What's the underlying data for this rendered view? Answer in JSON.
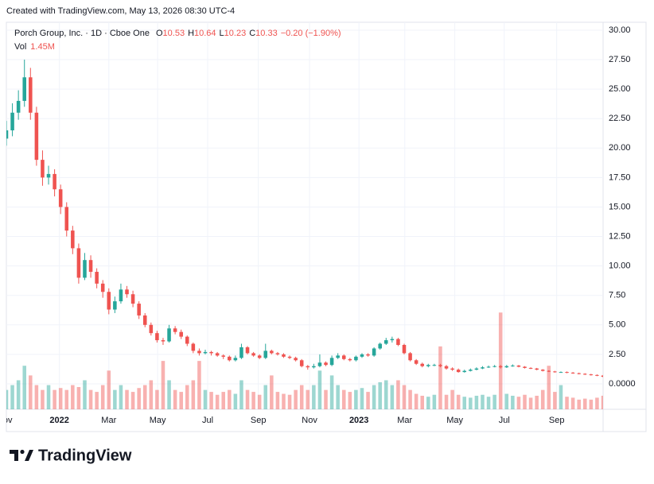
{
  "header": {
    "created": "Created with TradingView.com, May 13, 2026 08:30 UTC-4"
  },
  "footer": {
    "brand": "TradingView"
  },
  "chart_data": {
    "type": "candlestick",
    "legend": {
      "symbol": "Porch Group, Inc. · 1D · Cboe One",
      "ohlc": [
        {
          "label": "O",
          "value": "10.53"
        },
        {
          "label": "H",
          "value": "10.64"
        },
        {
          "label": "L",
          "value": "10.23"
        },
        {
          "label": "C",
          "value": "10.33"
        }
      ],
      "change": "−0.20 (−1.90%)",
      "volume_label": "Vol",
      "volume_value": "1.45M"
    },
    "up_color": "#26a69a",
    "down_color": "#ef5350",
    "grid": true,
    "xlim": [
      0,
      99
    ],
    "xticks": [
      {
        "value": -0.3,
        "label": "Nov"
      },
      {
        "value": 8.8,
        "label": "2022"
      },
      {
        "value": 17,
        "label": "Mar"
      },
      {
        "value": 25.1,
        "label": "May"
      },
      {
        "value": 33.4,
        "label": "Jul"
      },
      {
        "value": 41.8,
        "label": "Sep"
      },
      {
        "value": 50.3,
        "label": "Nov"
      },
      {
        "value": 58.5,
        "label": "2023"
      },
      {
        "value": 66.1,
        "label": "Mar"
      },
      {
        "value": 74.4,
        "label": "May"
      },
      {
        "value": 82.6,
        "label": "Jul"
      },
      {
        "value": 91.3,
        "label": "Sep"
      }
    ],
    "ylim": [
      -2.16,
      30.67
    ],
    "yticks": [
      {
        "value": 30,
        "label": "30.00"
      },
      {
        "value": 27.5,
        "label": "27.50"
      },
      {
        "value": 25,
        "label": "25.00"
      },
      {
        "value": 22.5,
        "label": "22.50"
      },
      {
        "value": 20,
        "label": "20.00"
      },
      {
        "value": 17.5,
        "label": "17.50"
      },
      {
        "value": 15,
        "label": "15.00"
      },
      {
        "value": 12.5,
        "label": "12.50"
      },
      {
        "value": 10,
        "label": "10.00"
      },
      {
        "value": 7.5,
        "label": "7.50"
      },
      {
        "value": 5,
        "label": "5.00"
      },
      {
        "value": 2.5,
        "label": "2.50"
      },
      {
        "value": 0,
        "label": "0.0000"
      }
    ],
    "y2lim": [
      0,
      40
    ],
    "open": [
      20.8,
      21.5,
      23,
      24,
      26,
      23,
      19,
      17.5,
      17.8,
      16.5,
      15,
      13,
      11.5,
      9,
      10.5,
      9.5,
      8.5,
      7.8,
      6.3,
      7,
      8,
      7.6,
      6.8,
      5.8,
      5,
      4.3,
      3.7,
      3.6,
      4.7,
      4.4,
      4,
      3.4,
      2.8,
      2.6,
      2.7,
      2.6,
      2.4,
      2.3,
      2,
      2.2,
      3.1,
      2.6,
      2.4,
      2.2,
      2.8,
      2.6,
      2.5,
      2.3,
      2.2,
      2.0,
      1.5,
      1.4,
      1.5,
      1.8,
      1.6,
      2.2,
      2.4,
      2.1,
      2.0,
      2.3,
      2.5,
      2.4,
      3.0,
      3.4,
      3.7,
      3.8,
      3.3,
      2.6,
      2.0,
      1.7,
      1.5,
      1.6,
      1.6,
      1.5,
      1.3,
      1.2,
      1.0,
      1.1,
      1.2,
      1.3,
      1.4,
      1.45,
      1.5,
      1.4,
      1.5,
      1.55,
      1.45,
      1.35,
      1.3,
      1.2,
      1.1,
      1.05,
      1.0,
      1.0,
      0.95,
      0.9,
      0.85,
      0.8,
      0.75,
      0.7
    ],
    "high": [
      22.3,
      23.8,
      24.9,
      27.5,
      26.8,
      23.5,
      19.8,
      18.5,
      18.2,
      16.9,
      15.4,
      13.4,
      11.9,
      11.1,
      10.9,
      9.8,
      8.8,
      8.1,
      7.4,
      8.5,
      8.3,
      7.9,
      7.0,
      6.0,
      5.2,
      4.5,
      3.9,
      5.0,
      4.9,
      4.6,
      4.1,
      3.5,
      3.0,
      2.9,
      2.8,
      2.7,
      2.5,
      2.4,
      2.4,
      3.4,
      3.2,
      2.7,
      2.5,
      3.4,
      2.9,
      2.7,
      2.6,
      2.4,
      2.3,
      2.1,
      1.6,
      1.7,
      2.5,
      1.9,
      2.4,
      2.6,
      2.5,
      2.2,
      2.4,
      2.6,
      2.6,
      3.1,
      3.5,
      3.9,
      4.0,
      3.9,
      3.4,
      2.7,
      2.1,
      1.8,
      1.7,
      1.7,
      1.7,
      1.6,
      1.4,
      1.3,
      1.2,
      1.3,
      1.4,
      1.5,
      1.55,
      1.6,
      1.6,
      1.6,
      1.65,
      1.6,
      1.5,
      1.4,
      1.35,
      1.25,
      1.15,
      1.1,
      1.05,
      1.05,
      1.0,
      0.95,
      0.9,
      0.85,
      0.8,
      0.75
    ],
    "low": [
      20.2,
      21.0,
      22.4,
      23.5,
      22.4,
      18.5,
      16.8,
      16.9,
      15.9,
      14.4,
      12.5,
      11.0,
      8.5,
      8.8,
      9.0,
      8.1,
      7.3,
      5.9,
      6.0,
      6.8,
      7.3,
      6.5,
      5.5,
      4.8,
      4.1,
      3.5,
      3.3,
      3.5,
      4.2,
      3.8,
      3.2,
      2.6,
      2.4,
      2.5,
      2.4,
      2.3,
      2.1,
      1.9,
      1.9,
      2.1,
      2.5,
      2.3,
      2.1,
      2.1,
      2.5,
      2.4,
      2.2,
      2.1,
      1.9,
      1.4,
      1.2,
      1.3,
      1.4,
      1.5,
      1.5,
      2.1,
      2.0,
      1.9,
      1.9,
      2.2,
      2.3,
      2.3,
      2.9,
      3.3,
      3.5,
      3.2,
      2.5,
      1.9,
      1.6,
      1.4,
      1.4,
      1.5,
      1.4,
      1.2,
      1.1,
      0.95,
      0.95,
      1.05,
      1.15,
      1.25,
      1.35,
      1.4,
      1.3,
      1.35,
      1.45,
      1.4,
      1.3,
      1.25,
      1.15,
      1.05,
      1.0,
      0.95,
      0.95,
      0.9,
      0.85,
      0.8,
      0.75,
      0.7,
      0.65,
      0.55
    ],
    "close": [
      21.5,
      23,
      24,
      26,
      23,
      19,
      17.5,
      17.8,
      16.5,
      15,
      13,
      11.5,
      9,
      10.5,
      9.5,
      8.5,
      7.8,
      6.3,
      7,
      8,
      7.6,
      6.8,
      5.8,
      5,
      4.3,
      3.7,
      3.6,
      4.7,
      4.4,
      4,
      3.4,
      2.8,
      2.6,
      2.7,
      2.6,
      2.4,
      2.3,
      2,
      2.2,
      3.1,
      2.6,
      2.4,
      2.2,
      2.8,
      2.6,
      2.5,
      2.3,
      2.2,
      2.0,
      1.5,
      1.4,
      1.5,
      1.8,
      1.6,
      2.2,
      2.4,
      2.1,
      2.0,
      2.3,
      2.5,
      2.4,
      3.0,
      3.4,
      3.7,
      3.8,
      3.3,
      2.6,
      2.0,
      1.7,
      1.5,
      1.6,
      1.6,
      1.5,
      1.3,
      1.2,
      1.0,
      1.1,
      1.2,
      1.3,
      1.4,
      1.45,
      1.5,
      1.4,
      1.5,
      1.55,
      1.45,
      1.35,
      1.3,
      1.2,
      1.1,
      1.05,
      1.0,
      1.0,
      0.95,
      0.9,
      0.85,
      0.8,
      0.75,
      0.7,
      0.6
    ],
    "volume": [
      2.0,
      2.5,
      3.0,
      4.5,
      3.5,
      2.5,
      2.0,
      2.5,
      2.0,
      2.2,
      2.0,
      2.5,
      2.3,
      3.0,
      2.0,
      1.8,
      2.5,
      4.0,
      2.0,
      2.5,
      2.0,
      1.8,
      2.2,
      2.5,
      3.0,
      2.0,
      5.0,
      3.0,
      2.0,
      1.8,
      2.5,
      3.0,
      5.0,
      2.0,
      1.8,
      1.5,
      1.8,
      2.0,
      1.6,
      3.0,
      2.0,
      1.8,
      1.5,
      2.5,
      3.5,
      1.8,
      1.6,
      1.5,
      2.0,
      2.5,
      2.0,
      2.5,
      4.0,
      2.0,
      3.5,
      2.5,
      2.0,
      1.8,
      2.0,
      2.2,
      1.8,
      2.5,
      2.8,
      3.0,
      2.5,
      3.0,
      2.5,
      2.0,
      1.6,
      1.4,
      1.3,
      1.5,
      6.5,
      1.5,
      2.0,
      1.5,
      1.3,
      1.2,
      1.4,
      1.5,
      1.3,
      1.5,
      10.0,
      1.6,
      1.4,
      1.3,
      1.5,
      1.2,
      1.4,
      2.0,
      4.5,
      1.8,
      2.5,
      1.3,
      1.2,
      1.0,
      1.1,
      1.0,
      1.2,
      1.4
    ]
  }
}
